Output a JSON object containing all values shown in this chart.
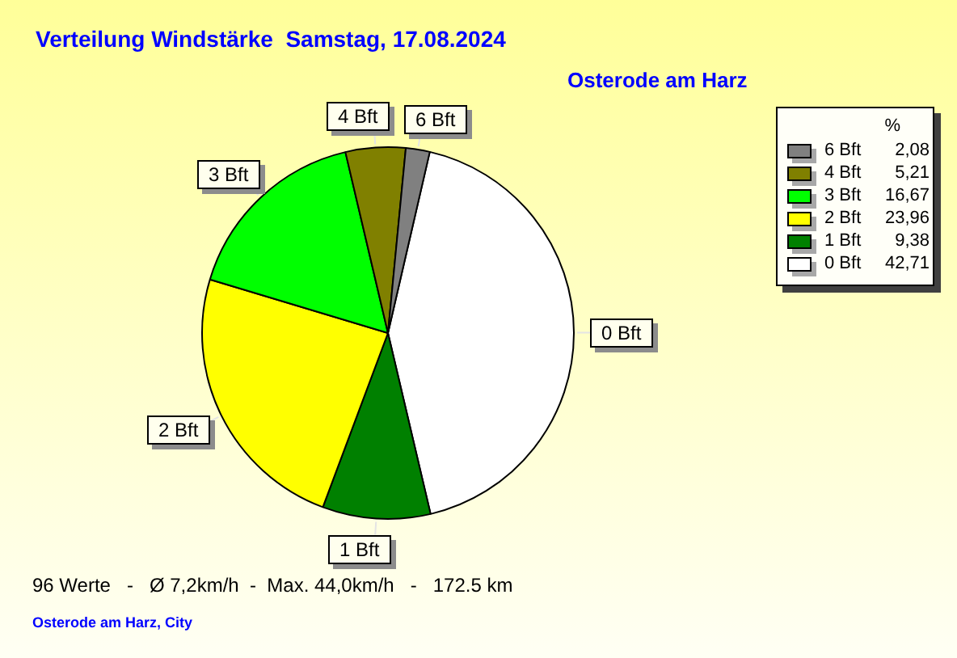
{
  "chart_data": {
    "type": "pie",
    "title": "Verteilung Windstärke  Samstag, 17.08.2024",
    "subtitle": "Osterode am Harz",
    "categories": [
      "0 Bft",
      "1 Bft",
      "2 Bft",
      "3 Bft",
      "4 Bft",
      "6 Bft"
    ],
    "values": [
      42.71,
      9.38,
      23.96,
      16.67,
      5.21,
      2.08
    ],
    "colors": [
      "#ffffff",
      "#008000",
      "#ffff00",
      "#00ff00",
      "#808000",
      "#808080"
    ],
    "value_labels": [
      "42,71",
      "9,38",
      "23,96",
      "16,67",
      "5,21",
      "2,08"
    ],
    "legend_title": "%",
    "legend": "top right",
    "annotations": [
      "96 Werte   -   Ø 7,2km/h  -  Max. 44,0km/h   -   172.5 km",
      "Osterode am Harz, City"
    ]
  }
}
